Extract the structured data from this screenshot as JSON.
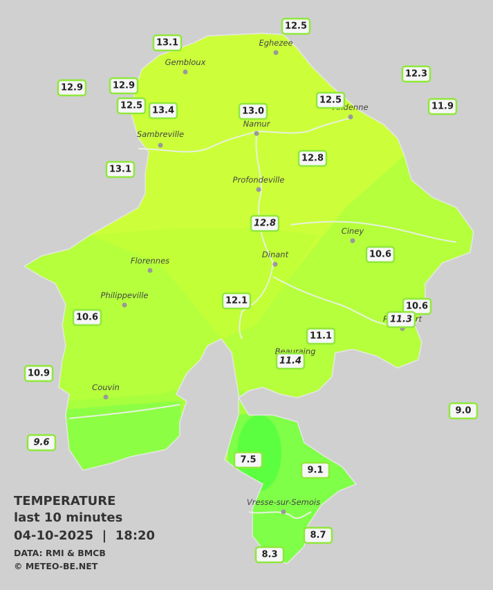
{
  "cities": [
    "Eghezee",
    "Gembloux",
    "Andenne",
    "Namur",
    "Sambreville",
    "Profondeville",
    "Ciney",
    "Dinant",
    "Florennes",
    "Philippeville",
    "Beauraing",
    "Rochefort",
    "Couvin",
    "Vresse-sur-Semois"
  ],
  "stations": [
    "12.5",
    "13.1",
    "12.3",
    "12.9",
    "12.9",
    "12.5",
    "13.4",
    "13.0",
    "12.5",
    "11.9",
    "13.1",
    "12.8",
    "12.8",
    "10.6",
    "10.6",
    "11.3",
    "12.1",
    "10.6",
    "11.1",
    "11.4",
    "10.9",
    "9.0",
    "9.6",
    "7.5",
    "9.1",
    "8.7",
    "8.3"
  ],
  "legend": {
    "title": "TEMPERATURE",
    "period": "last 10 minutes",
    "datetime": "04-10-2025  |  18:20",
    "source": "DATA: RMI & BMCB",
    "credit": "© METEO-BE.NET"
  }
}
